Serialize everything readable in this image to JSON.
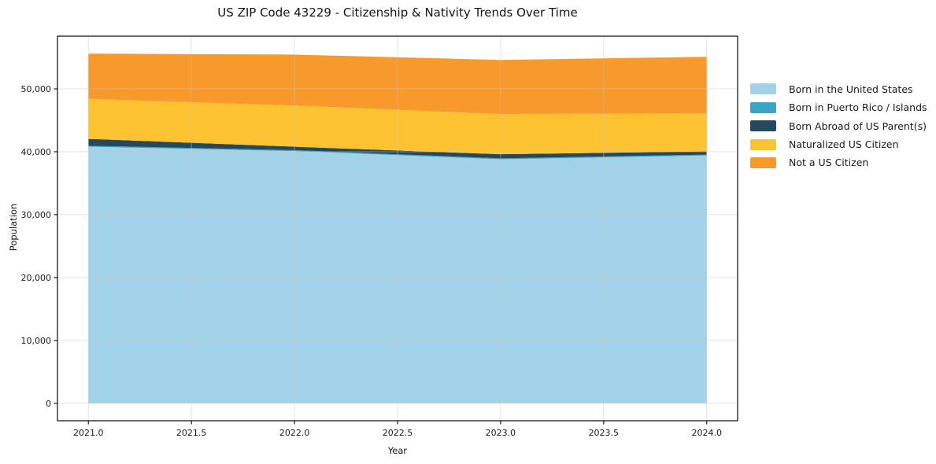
{
  "chart_data": {
    "type": "area",
    "stacked": true,
    "title": "US ZIP Code 43229 - Citizenship & Nativity Trends Over Time",
    "xlabel": "Year",
    "ylabel": "Population",
    "x": [
      2021,
      2022,
      2023,
      2024
    ],
    "series": [
      {
        "name": "Born in the United States",
        "color": "#a2d2e7",
        "values": [
          40800,
          40100,
          38800,
          39400
        ]
      },
      {
        "name": "Born in Puerto Rico / Islands",
        "color": "#3ba3c4",
        "values": [
          150,
          150,
          150,
          150
        ]
      },
      {
        "name": "Born Abroad of US Parent(s)",
        "color": "#25485a",
        "values": [
          1100,
          550,
          650,
          500
        ]
      },
      {
        "name": "Naturalized US Citizen",
        "color": "#fdc22f",
        "values": [
          6350,
          6550,
          6400,
          6050
        ]
      },
      {
        "name": "Not a US Citizen",
        "color": "#f8992c",
        "values": [
          7200,
          8100,
          8600,
          9000
        ]
      }
    ],
    "stack_totals": [
      55600,
      55450,
      54600,
      55100
    ],
    "xlim": [
      2020.85,
      2024.15
    ],
    "ylim": [
      -2780,
      58380
    ],
    "xticks": [
      2021.0,
      2021.5,
      2022.0,
      2022.5,
      2023.0,
      2023.5,
      2024.0
    ],
    "xtick_labels": [
      "2021.0",
      "2021.5",
      "2022.0",
      "2022.5",
      "2023.0",
      "2023.5",
      "2024.0"
    ],
    "yticks": [
      0,
      10000,
      20000,
      30000,
      40000,
      50000
    ],
    "ytick_labels": [
      "0",
      "10,000",
      "20,000",
      "30,000",
      "40,000",
      "50,000"
    ],
    "grid": true,
    "legend_position": "right of plot, frameless",
    "colors": {
      "background": "#ffffff",
      "grid": "#c8c8c8",
      "spine": "#1a1a1a",
      "tick_text": "#1a1a1a"
    }
  }
}
